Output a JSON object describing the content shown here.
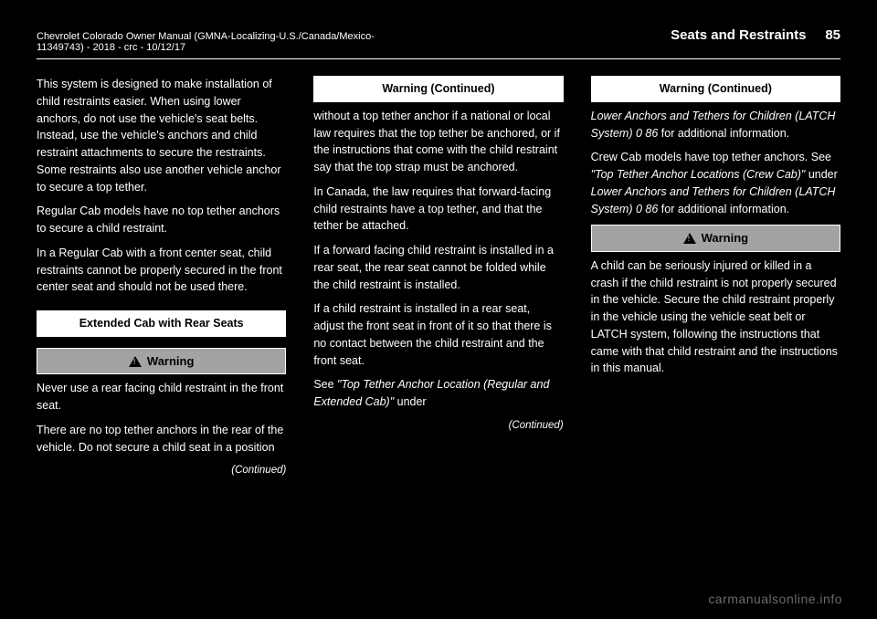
{
  "header": {
    "left": "Chevrolet Colorado Owner Manual (GMNA-Localizing-U.S./Canada/Mexico-\n11349743) - 2018 - crc - 10/12/17",
    "right_title": "Seats and Restraints",
    "right_page": "85"
  },
  "col1": {
    "p1": "This system is designed to make installation of child restraints easier. When using lower anchors, do not use the vehicle's seat belts. Instead, use the vehicle's anchors and child restraint attachments to secure the restraints. Some restraints also use another vehicle anchor to secure a top tether.",
    "p2": "Regular Cab models have no top tether anchors to secure a child restraint.",
    "p3": "In a Regular Cab with a front center seat, child restraints cannot be properly secured in the front center seat and should not be used there.",
    "sub_heading": "Extended Cab with Rear Seats",
    "warning_label": "Warning",
    "warning_body_p1": "Never use a rear facing child restraint in the front seat.",
    "warning_body_p2": "There are no top tether anchors in the rear of the vehicle. Do not secure a child seat in a position",
    "continued": "(Continued)"
  },
  "col2": {
    "cont_header": "Warning (Continued)",
    "p1": "without a top tether anchor if a national or local law requires that the top tether be anchored, or if the instructions that come with the child restraint say that the top strap must be anchored.",
    "p2": "In Canada, the law requires that forward-facing child restraints have a top tether, and that the tether be attached.",
    "p3": "If a forward facing child restraint is installed in a rear seat, the rear seat cannot be folded while the child restraint is installed.",
    "p4": "If a child restraint is installed in a rear seat, adjust the front seat in front of it so that there is no contact between the child restraint and the front seat.",
    "p5_pre": "See ",
    "p5_ref": "\"Top Tether Anchor Location (Regular and Extended Cab)\"",
    "p5_post": " under",
    "continued": "(Continued)"
  },
  "col3": {
    "cont_header": "Warning (Continued)",
    "p1_ref": "Lower Anchors and Tethers for Children (LATCH System) 0 86",
    "p1_post": " for additional information.",
    "p2_pre": "Crew Cab models have top tether anchors. See ",
    "p2_ref": "\"Top Tether Anchor Locations (Crew Cab)\"",
    "p2_mid": " under ",
    "p2_ref2": "Lower Anchors and Tethers for Children (LATCH System) 0 86",
    "p2_post": " for additional information.",
    "warning_label": "Warning",
    "w_p1": "A child can be seriously injured or killed in a crash if the child restraint is not properly secured in the vehicle. Secure the child restraint properly in the vehicle using the vehicle seat belt or LATCH system, following the instructions that came with that child restraint and the instructions in this manual."
  },
  "watermark": "carmanualsonline.info",
  "colors": {
    "background": "#000000",
    "text": "#ffffff",
    "box_bg": "#a3a3a3",
    "box_text": "#000000",
    "watermark": "#6b6b6b"
  }
}
